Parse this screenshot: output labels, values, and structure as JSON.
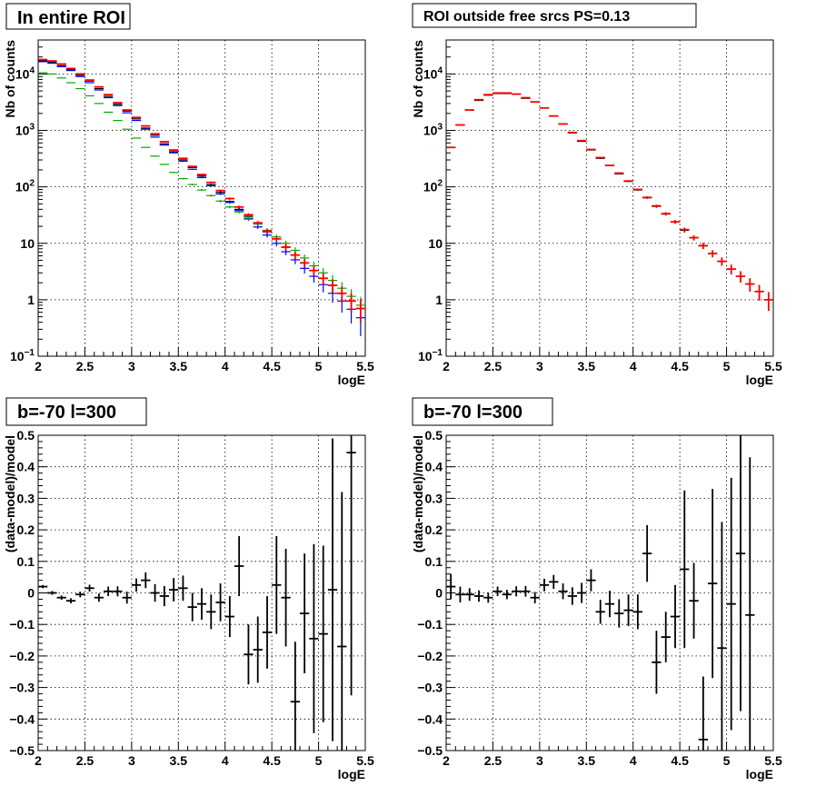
{
  "chart_data": [
    {
      "type": "scatter",
      "title": "In entire ROI",
      "xlabel": "logE",
      "ylabel": "Nb of counts",
      "xlim": [
        2,
        5.5
      ],
      "ylim": [
        0.1,
        40000
      ],
      "log_y": true,
      "grid": true,
      "xticks": [
        "2",
        "2.5",
        "3",
        "3.5",
        "4",
        "4.5",
        "5",
        "5.5"
      ],
      "yticks": [
        {
          "value": 0.1,
          "base": "10",
          "exp": "−1"
        },
        {
          "value": 1,
          "label": "1"
        },
        {
          "value": 10,
          "label": "10"
        },
        {
          "value": 100,
          "base": "10",
          "exp": "2"
        },
        {
          "value": 1000,
          "base": "10",
          "exp": "3"
        },
        {
          "value": 10000,
          "base": "10",
          "exp": "4"
        }
      ],
      "x": [
        2.05,
        2.15,
        2.25,
        2.35,
        2.45,
        2.55,
        2.65,
        2.75,
        2.85,
        2.95,
        3.05,
        3.15,
        3.25,
        3.35,
        3.45,
        3.55,
        3.65,
        3.75,
        3.85,
        3.95,
        4.05,
        4.15,
        4.25,
        4.35,
        4.45,
        4.55,
        4.65,
        4.75,
        4.85,
        4.95,
        5.05,
        5.15,
        5.25,
        5.35,
        5.45
      ],
      "series": [
        {
          "color": "#000000",
          "values": [
            17000,
            16000,
            14000,
            12000,
            9500,
            7500,
            5500,
            4000,
            2900,
            2200,
            1600,
            1100,
            820,
            580,
            420,
            300,
            220,
            155,
            110,
            80,
            55,
            40,
            30,
            22,
            16,
            12,
            8.5,
            6.2,
            4.5,
            3.3,
            2.4,
            1.8,
            1.3,
            0.95,
            0.7
          ],
          "err": [
            0.5,
            0.5,
            0.5,
            0.5,
            0.5,
            0.5,
            0.5,
            0.5,
            0.5,
            0.5,
            0.5,
            0.5,
            0.5,
            0.5,
            0.5,
            0.5,
            0.5,
            0.5,
            0.5,
            0.5,
            0.5,
            0.5,
            0.5,
            0.5,
            0.5,
            0.5,
            0.5,
            0.5,
            0.5,
            0.5,
            0.5,
            0.5,
            0.5,
            0.5,
            0.5
          ]
        },
        {
          "color": "#0000ff",
          "values": [
            16500,
            15500,
            13500,
            11500,
            9000,
            7000,
            5200,
            3800,
            2750,
            2050,
            1500,
            1050,
            760,
            550,
            400,
            285,
            205,
            146,
            105,
            75,
            53,
            38,
            27,
            19.5,
            14,
            10,
            7.1,
            5.1,
            3.6,
            2.6,
            1.85,
            1.3,
            0.95,
            0.68,
            0.48
          ],
          "err": [
            0.5,
            0.5,
            0.5,
            0.5,
            0.5,
            0.5,
            0.5,
            0.5,
            0.5,
            0.5,
            0.5,
            0.5,
            0.5,
            0.5,
            0.5,
            0.5,
            0.5,
            0.5,
            0.5,
            0.5,
            0.5,
            0.5,
            0.5,
            0.5,
            0.5,
            0.5,
            0.5,
            0.5,
            0.5,
            0.5,
            0.5,
            0.5,
            0.5,
            0.5,
            0.5
          ]
        },
        {
          "color": "#00aa00",
          "values": [
            10500,
            10000,
            8500,
            7000,
            5500,
            4100,
            3000,
            2100,
            1500,
            1050,
            730,
            500,
            350,
            250,
            180,
            140,
            110,
            88,
            70,
            56,
            44,
            36,
            28,
            22,
            17,
            13,
            10,
            7.5,
            5.5,
            4,
            3,
            2.2,
            1.6,
            1.15,
            0.8
          ],
          "err": [
            0.5,
            0.5,
            0.5,
            0.5,
            0.5,
            0.5,
            0.5,
            0.5,
            0.5,
            0.5,
            0.5,
            0.5,
            0.5,
            0.5,
            0.5,
            0.5,
            0.5,
            0.5,
            0.5,
            0.5,
            0.5,
            0.5,
            0.5,
            0.5,
            0.5,
            0.5,
            0.5,
            0.5,
            0.5,
            0.5,
            0.5,
            0.5,
            0.5,
            0.5,
            0.5
          ]
        },
        {
          "color": "#ff0000",
          "values": [
            18000,
            17000,
            15000,
            12500,
            10000,
            7800,
            5900,
            4300,
            3100,
            2300,
            1700,
            1200,
            870,
            630,
            450,
            320,
            230,
            165,
            120,
            86,
            62,
            44,
            32,
            23,
            16.5,
            12,
            8.6,
            6.2,
            4.5,
            3.3,
            2.4,
            1.8,
            1.3,
            0.95,
            0.7
          ],
          "err": [
            0.5,
            0.5,
            0.5,
            0.5,
            0.5,
            0.5,
            0.5,
            0.5,
            0.5,
            0.5,
            0.5,
            0.5,
            0.5,
            0.5,
            0.5,
            0.5,
            0.5,
            0.5,
            0.5,
            0.5,
            0.5,
            0.5,
            0.5,
            0.5,
            0.5,
            0.5,
            0.5,
            0.5,
            0.5,
            0.5,
            0.5,
            0.5,
            0.5,
            0.5,
            0.5
          ]
        }
      ]
    },
    {
      "type": "scatter",
      "title": "ROI outside free srcs PS=0.13",
      "xlabel": "logE",
      "ylabel": "Nb of counts",
      "xlim": [
        2,
        5.5
      ],
      "ylim": [
        0.1,
        40000
      ],
      "log_y": true,
      "grid": true,
      "xticks": [
        "2",
        "2.5",
        "3",
        "3.5",
        "4",
        "4.5",
        "5",
        "5.5"
      ],
      "yticks": [
        {
          "value": 0.1,
          "base": "10",
          "exp": "−1"
        },
        {
          "value": 1,
          "label": "1"
        },
        {
          "value": 10,
          "label": "10"
        },
        {
          "value": 100,
          "base": "10",
          "exp": "2"
        },
        {
          "value": 1000,
          "base": "10",
          "exp": "3"
        },
        {
          "value": 10000,
          "base": "10",
          "exp": "4"
        }
      ],
      "x": [
        2.05,
        2.15,
        2.25,
        2.35,
        2.45,
        2.55,
        2.65,
        2.75,
        2.85,
        2.95,
        3.05,
        3.15,
        3.25,
        3.35,
        3.45,
        3.55,
        3.65,
        3.75,
        3.85,
        3.95,
        4.05,
        4.15,
        4.25,
        4.35,
        4.45,
        4.55,
        4.65,
        4.75,
        4.85,
        4.95,
        5.05,
        5.15,
        5.25,
        5.35,
        5.45
      ],
      "series": [
        {
          "color": "#000000",
          "values": [
            500,
            1250,
            2300,
            3400,
            4200,
            4500,
            4500,
            4400,
            3700,
            3200,
            2500,
            1800,
            1300,
            900,
            640,
            450,
            320,
            240,
            170,
            125,
            88,
            64,
            45,
            33,
            24,
            17,
            12.5,
            9,
            6.6,
            4.8,
            3.5,
            2.6,
            1.9,
            1.4,
            1.0
          ],
          "err": [
            0.5,
            0.5,
            0.5,
            0.5,
            0.5,
            0.5,
            0.5,
            0.5,
            0.5,
            0.5,
            0.5,
            0.5,
            0.5,
            0.5,
            0.5,
            0.5,
            0.5,
            0.5,
            0.5,
            0.5,
            0.5,
            0.5,
            0.5,
            0.5,
            0.5,
            0.5,
            0.5,
            0.5,
            0.5,
            0.5,
            0.5,
            0.5,
            0.5,
            0.5,
            0.5
          ]
        },
        {
          "color": "#ff0000",
          "values": [
            500,
            1250,
            2300,
            3500,
            4300,
            4600,
            4600,
            4400,
            3800,
            3200,
            2500,
            1800,
            1300,
            920,
            660,
            460,
            330,
            240,
            175,
            127,
            90,
            65,
            46,
            33.5,
            24,
            17.5,
            12.6,
            9.1,
            6.6,
            4.8,
            3.5,
            2.6,
            1.9,
            1.4,
            1.0
          ],
          "err": [
            0.5,
            0.5,
            0.5,
            0.5,
            0.5,
            0.5,
            0.5,
            0.5,
            0.5,
            0.5,
            0.5,
            0.5,
            0.5,
            0.5,
            0.5,
            0.5,
            0.5,
            0.5,
            0.5,
            0.5,
            0.5,
            0.5,
            0.5,
            0.5,
            0.5,
            0.5,
            0.5,
            0.5,
            0.5,
            0.5,
            0.5,
            0.5,
            0.5,
            0.5,
            0.5
          ]
        }
      ]
    },
    {
      "type": "scatter",
      "title": "b=-70 l=300",
      "xlabel": "logE",
      "ylabel": "(data-model)/model",
      "xlim": [
        2,
        5.5
      ],
      "ylim": [
        -0.5,
        0.5
      ],
      "log_y": false,
      "grid": true,
      "xticks": [
        "2",
        "2.5",
        "3",
        "3.5",
        "4",
        "4.5",
        "5",
        "5.5"
      ],
      "yticks": [
        {
          "value": -0.5,
          "label": "−0.5"
        },
        {
          "value": -0.4,
          "label": "−0.4"
        },
        {
          "value": -0.3,
          "label": "−0.3"
        },
        {
          "value": -0.2,
          "label": "−0.2"
        },
        {
          "value": -0.1,
          "label": "−0.1"
        },
        {
          "value": 0,
          "label": "0"
        },
        {
          "value": 0.1,
          "label": "0.1"
        },
        {
          "value": 0.2,
          "label": "0.2"
        },
        {
          "value": 0.3,
          "label": "0.3"
        },
        {
          "value": 0.4,
          "label": "0.4"
        },
        {
          "value": 0.5,
          "label": "0.5"
        }
      ],
      "x": [
        2.05,
        2.15,
        2.25,
        2.35,
        2.45,
        2.55,
        2.65,
        2.75,
        2.85,
        2.95,
        3.05,
        3.15,
        3.25,
        3.35,
        3.45,
        3.55,
        3.65,
        3.75,
        3.85,
        3.95,
        4.05,
        4.15,
        4.25,
        4.35,
        4.45,
        4.55,
        4.65,
        4.75,
        4.85,
        4.95,
        5.05,
        5.15,
        5.25,
        5.35
      ],
      "series": [
        {
          "color": "#000000",
          "values": [
            0.02,
            0.0,
            -0.015,
            -0.025,
            -0.005,
            0.015,
            -0.015,
            0.005,
            0.005,
            -0.015,
            0.025,
            0.04,
            0.0,
            -0.01,
            0.01,
            0.015,
            -0.045,
            -0.035,
            -0.06,
            -0.03,
            -0.075,
            0.085,
            -0.195,
            -0.18,
            -0.125,
            0.025,
            -0.015,
            -0.345,
            -0.065,
            -0.145,
            -0.13,
            0.01,
            -0.17,
            0.445
          ],
          "err": [
            0.005,
            0.006,
            0.007,
            0.008,
            0.009,
            0.011,
            0.013,
            0.015,
            0.016,
            0.019,
            0.021,
            0.025,
            0.028,
            0.032,
            0.037,
            0.04,
            0.045,
            0.05,
            0.055,
            0.06,
            0.065,
            0.095,
            0.095,
            0.105,
            0.115,
            0.155,
            0.155,
            0.19,
            0.19,
            0.3,
            0.28,
            0.48,
            0.49,
            0.77
          ]
        }
      ]
    },
    {
      "type": "scatter",
      "title": "b=-70 l=300",
      "xlabel": "logE",
      "ylabel": "(data-model)/model",
      "xlim": [
        2,
        5.5
      ],
      "ylim": [
        -0.5,
        0.5
      ],
      "log_y": false,
      "grid": true,
      "xticks": [
        "2",
        "2.5",
        "3",
        "3.5",
        "4",
        "4.5",
        "5",
        "5.5"
      ],
      "yticks": [
        {
          "value": -0.5,
          "label": "−0.5"
        },
        {
          "value": -0.4,
          "label": "−0.4"
        },
        {
          "value": -0.3,
          "label": "−0.3"
        },
        {
          "value": -0.2,
          "label": "−0.2"
        },
        {
          "value": -0.1,
          "label": "−0.1"
        },
        {
          "value": 0,
          "label": "0"
        },
        {
          "value": 0.1,
          "label": "0.1"
        },
        {
          "value": 0.2,
          "label": "0.2"
        },
        {
          "value": 0.3,
          "label": "0.3"
        },
        {
          "value": 0.4,
          "label": "0.4"
        },
        {
          "value": 0.5,
          "label": "0.5"
        }
      ],
      "x": [
        2.05,
        2.15,
        2.25,
        2.35,
        2.45,
        2.55,
        2.65,
        2.75,
        2.85,
        2.95,
        3.05,
        3.15,
        3.25,
        3.35,
        3.45,
        3.55,
        3.65,
        3.75,
        3.85,
        3.95,
        4.05,
        4.15,
        4.25,
        4.35,
        4.45,
        4.55,
        4.65,
        4.75,
        4.85,
        4.95,
        5.05,
        5.15,
        5.25
      ],
      "series": [
        {
          "color": "#000000",
          "values": [
            0.02,
            -0.005,
            -0.005,
            -0.01,
            -0.015,
            0.005,
            -0.005,
            0.005,
            0.005,
            -0.015,
            0.025,
            0.035,
            0.005,
            -0.01,
            0.0,
            0.04,
            -0.06,
            -0.035,
            -0.065,
            -0.055,
            -0.06,
            0.125,
            -0.22,
            -0.14,
            -0.075,
            0.075,
            -0.025,
            -0.465,
            0.03,
            -0.175,
            -0.035,
            0.125,
            -0.07
          ],
          "err": [
            0.04,
            0.025,
            0.02,
            0.018,
            0.016,
            0.015,
            0.015,
            0.016,
            0.017,
            0.018,
            0.02,
            0.022,
            0.025,
            0.028,
            0.032,
            0.035,
            0.038,
            0.042,
            0.045,
            0.05,
            0.055,
            0.09,
            0.1,
            0.08,
            0.1,
            0.25,
            0.12,
            0.2,
            0.3,
            0.4,
            0.4,
            0.5,
            0.5
          ]
        }
      ]
    }
  ]
}
